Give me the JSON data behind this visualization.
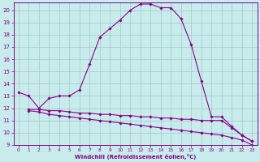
{
  "xlabel": "Windchill (Refroidissement éolien,°C)",
  "bg_color": "#c8ecec",
  "grid_color": "#a0c8c8",
  "line_color": "#880088",
  "xlim": [
    -0.5,
    23.5
  ],
  "ylim": [
    9,
    20.6
  ],
  "xticks": [
    0,
    1,
    2,
    3,
    4,
    5,
    6,
    7,
    8,
    9,
    10,
    11,
    12,
    13,
    14,
    15,
    16,
    17,
    18,
    19,
    20,
    21,
    22,
    23
  ],
  "yticks": [
    9,
    10,
    11,
    12,
    13,
    14,
    15,
    16,
    17,
    18,
    19,
    20
  ],
  "line1_x": [
    0,
    1,
    2,
    3,
    4,
    5,
    6,
    7,
    8,
    9,
    10,
    11,
    12,
    13,
    14,
    15,
    16,
    17,
    18,
    19,
    20,
    21,
    22,
    23
  ],
  "line1_y": [
    13.3,
    13.0,
    12.0,
    12.8,
    13.0,
    13.0,
    13.5,
    15.6,
    17.8,
    18.5,
    19.2,
    20.0,
    20.5,
    20.5,
    20.2,
    20.2,
    19.3,
    17.2,
    14.2,
    11.3,
    11.3,
    10.5,
    9.8,
    9.3
  ],
  "line2_x": [
    1,
    2,
    3,
    4,
    5,
    6,
    7,
    8,
    9,
    10,
    11,
    12,
    13,
    14,
    15,
    16,
    17,
    18,
    19,
    20,
    21,
    22,
    23
  ],
  "line2_y": [
    11.9,
    11.9,
    11.8,
    11.8,
    11.7,
    11.6,
    11.6,
    11.5,
    11.5,
    11.4,
    11.4,
    11.3,
    11.3,
    11.2,
    11.2,
    11.1,
    11.1,
    11.0,
    11.0,
    11.0,
    10.4,
    9.8,
    9.3
  ],
  "line3_x": [
    1,
    2,
    3,
    4,
    5,
    6,
    7,
    8,
    9,
    10,
    11,
    12,
    13,
    14,
    15,
    16,
    17,
    18,
    19,
    20,
    21,
    22,
    23
  ],
  "line3_y": [
    11.8,
    11.7,
    11.5,
    11.4,
    11.3,
    11.2,
    11.1,
    11.0,
    10.9,
    10.8,
    10.7,
    10.6,
    10.5,
    10.4,
    10.3,
    10.2,
    10.1,
    10.0,
    9.9,
    9.8,
    9.6,
    9.4,
    9.0
  ]
}
